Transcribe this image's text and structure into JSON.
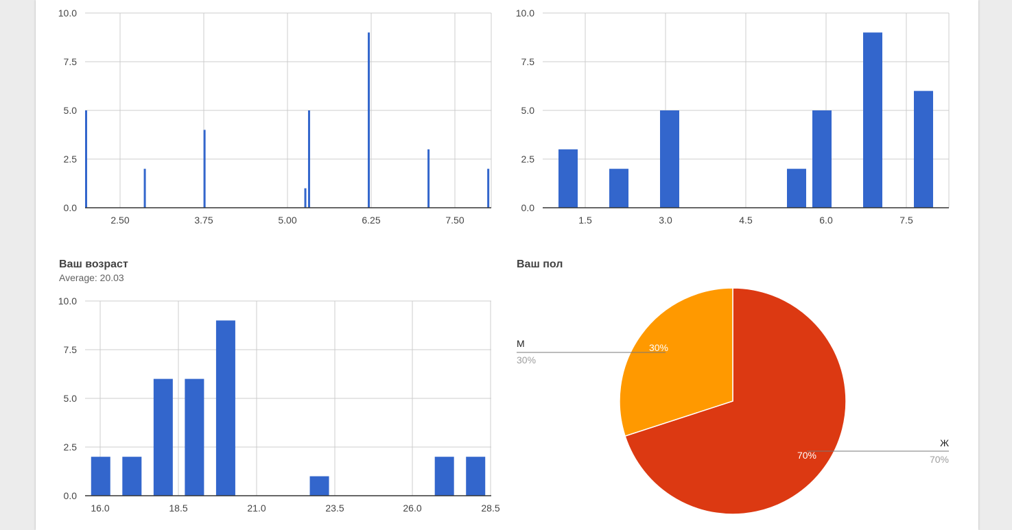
{
  "colors": {
    "bar": "#3366cc",
    "grid": "#cccccc",
    "axis": "#333333",
    "tick_text": "#444444",
    "slice_f": "#dc3912",
    "slice_m": "#ff9900"
  },
  "charts": {
    "top_left": {
      "title": "",
      "subtitle": ""
    },
    "top_right": {
      "title": "",
      "subtitle": ""
    },
    "age": {
      "title": "Ваш возраст",
      "subtitle": "Average: 20.03"
    },
    "gender": {
      "title": "Ваш пол",
      "subtitle": ""
    }
  },
  "chart_data": [
    {
      "id": "top_left",
      "type": "bar",
      "title": "",
      "x": [
        2.0,
        2.8,
        3.6,
        4.95,
        5.0,
        5.8,
        6.6,
        7.4
      ],
      "values": [
        5,
        2,
        4,
        1,
        5,
        9,
        3,
        2
      ],
      "xlim": [
        2.0,
        7.44
      ],
      "ylim": [
        0,
        10
      ],
      "xticks": [
        "2.50",
        "3.75",
        "5.00",
        "6.25",
        "7.50"
      ],
      "yticks": [
        "0.0",
        "2.5",
        "5.0",
        "7.5",
        "10.0"
      ],
      "grid": true
    },
    {
      "id": "top_right",
      "type": "bar",
      "title": "",
      "x": [
        1,
        2,
        3,
        5.5,
        6,
        7,
        8
      ],
      "values": [
        3,
        2,
        5,
        2,
        5,
        9,
        6
      ],
      "xlim": [
        0.5,
        8.5
      ],
      "ylim": [
        0,
        10
      ],
      "xticks": [
        "1.5",
        "3.0",
        "4.5",
        "6.0",
        "7.5"
      ],
      "yticks": [
        "0.0",
        "2.5",
        "5.0",
        "7.5",
        "10.0"
      ],
      "grid": true
    },
    {
      "id": "age",
      "type": "bar",
      "title": "Ваш возраст",
      "subtitle": "Average: 20.03",
      "x": [
        16,
        17,
        18,
        19,
        20,
        23,
        27,
        28
      ],
      "values": [
        2,
        2,
        6,
        6,
        9,
        1,
        2,
        2
      ],
      "xlim": [
        15.5,
        28.5
      ],
      "ylim": [
        0,
        10
      ],
      "xticks": [
        "16.0",
        "18.5",
        "21.0",
        "23.5",
        "26.0",
        "28.5"
      ],
      "yticks": [
        "0.0",
        "2.5",
        "5.0",
        "7.5",
        "10.0"
      ],
      "grid": true
    },
    {
      "id": "gender",
      "type": "pie",
      "title": "Ваш пол",
      "slices": [
        {
          "label": "Ж",
          "value": 70,
          "percent_label": "70%",
          "color": "#dc3912"
        },
        {
          "label": "М",
          "value": 30,
          "percent_label": "30%",
          "color": "#ff9900"
        }
      ],
      "legend": "labeled"
    }
  ]
}
